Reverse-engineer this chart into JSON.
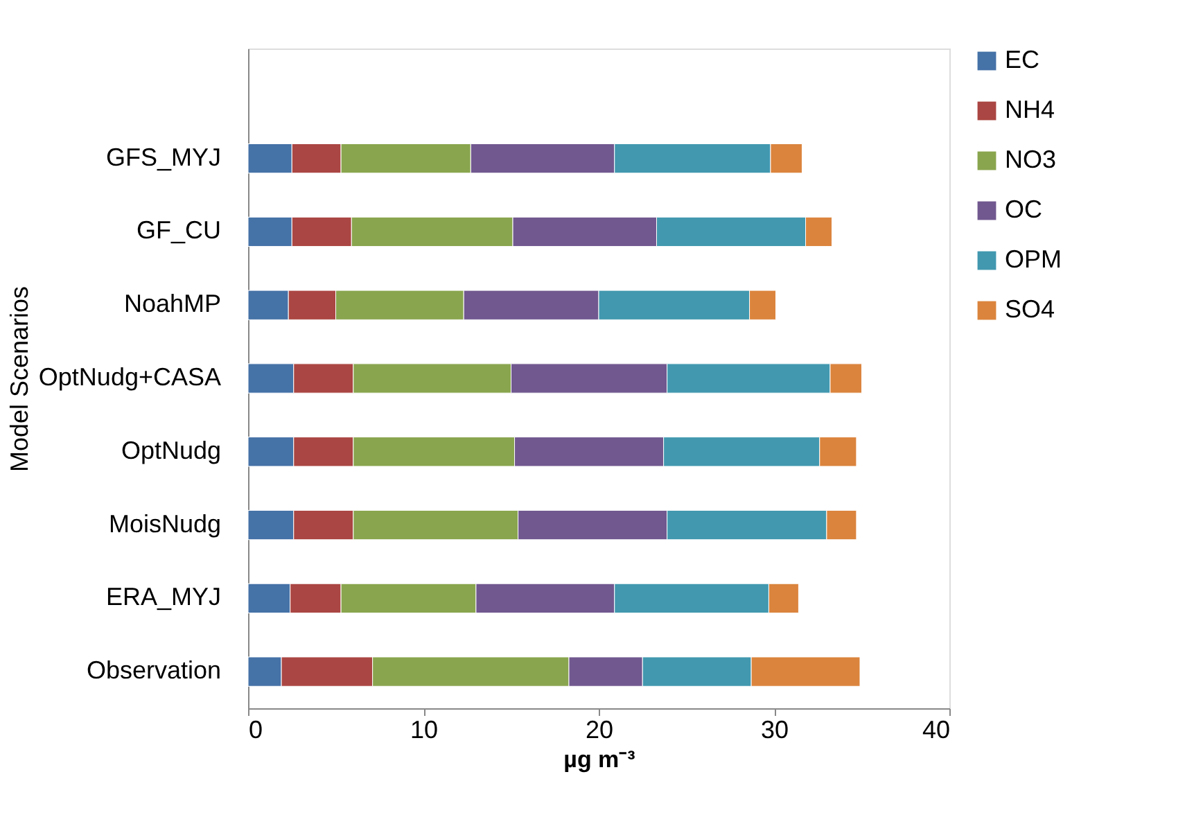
{
  "chart_data": {
    "type": "bar",
    "orientation": "horizontal",
    "stacked": true,
    "categories": [
      null,
      "GFS_MYJ",
      "GF_CU",
      "NoahMP",
      "OptNudg+CASA",
      "OptNudg",
      "MoisNudg",
      "ERA_MYJ",
      "Observation"
    ],
    "series": [
      {
        "name": "EC",
        "color": "#4572a7",
        "values": [
          null,
          2.5,
          2.5,
          2.3,
          2.6,
          2.6,
          2.6,
          2.4,
          1.9
        ]
      },
      {
        "name": "NH4",
        "color": "#aa4643",
        "values": [
          null,
          2.8,
          3.4,
          2.7,
          3.4,
          3.4,
          3.4,
          2.9,
          5.2
        ]
      },
      {
        "name": "NO3",
        "color": "#89a54e",
        "values": [
          null,
          7.4,
          9.2,
          7.3,
          9.0,
          9.2,
          9.4,
          7.7,
          11.2
        ]
      },
      {
        "name": "OC",
        "color": "#71588f",
        "values": [
          null,
          8.2,
          8.2,
          7.7,
          8.9,
          8.5,
          8.5,
          7.9,
          4.2
        ]
      },
      {
        "name": "OPM",
        "color": "#4198af",
        "values": [
          null,
          8.9,
          8.5,
          8.6,
          9.3,
          8.9,
          9.1,
          8.8,
          6.2
        ]
      },
      {
        "name": "SO4",
        "color": "#db843d",
        "values": [
          null,
          1.8,
          1.5,
          1.5,
          1.8,
          2.1,
          1.7,
          1.7,
          6.2
        ]
      }
    ],
    "xlim": [
      0,
      40
    ],
    "xticks": [
      0,
      10,
      20,
      30,
      40
    ],
    "xlabel": "µg m⁻³",
    "ylabel": "Model Scenarios",
    "legend": "right",
    "grid": false
  }
}
